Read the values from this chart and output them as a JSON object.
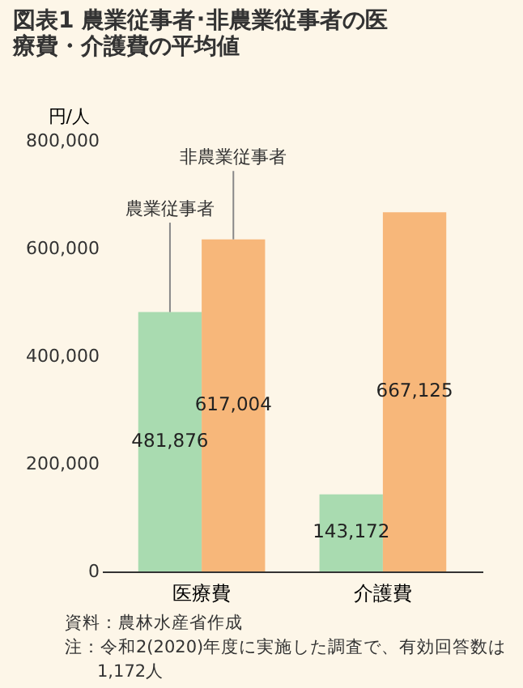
{
  "chart_data": {
    "type": "bar",
    "title": "図表1 農業従事者･非農業従事者の医療費・介護費の平均値",
    "ylabel": "円/人",
    "categories": [
      "医療費",
      "介護費"
    ],
    "series": [
      {
        "name": "農業従事者",
        "color": "#a9dbb0",
        "values": [
          481876,
          143172
        ],
        "value_labels": [
          "481,876",
          "143,172"
        ]
      },
      {
        "name": "非農業従事者",
        "color": "#f7b77a",
        "values": [
          617004,
          667125
        ],
        "value_labels": [
          "617,004",
          "667,125"
        ]
      }
    ],
    "ylim": [
      0,
      800000
    ],
    "yticks": [
      0,
      {
        "value": 200000,
        "label": "200,000"
      },
      {
        "value": 400000,
        "label": "400,000"
      },
      {
        "value": 600000,
        "label": "600,000"
      },
      {
        "value": 800000,
        "label": "800,000"
      }
    ],
    "grid": false,
    "legend": false,
    "annotations": [
      "資料：農林水産省作成",
      "注：令和2(2020)年度に実施した調査で、有効回答数は1,172人"
    ]
  }
}
